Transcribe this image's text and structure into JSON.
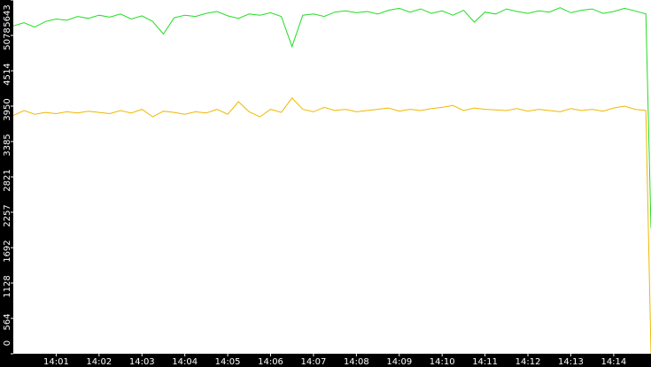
{
  "chart_data": {
    "type": "line",
    "xlim": [
      0,
      14.87
    ],
    "xticks": [
      {
        "value": 1,
        "label": "14:01"
      },
      {
        "value": 2,
        "label": "14:02"
      },
      {
        "value": 3,
        "label": "14:03"
      },
      {
        "value": 4,
        "label": "14:04"
      },
      {
        "value": 5,
        "label": "14:05"
      },
      {
        "value": 6,
        "label": "14:06"
      },
      {
        "value": 7,
        "label": "14:07"
      },
      {
        "value": 8,
        "label": "14:08"
      },
      {
        "value": 9,
        "label": "14:09"
      },
      {
        "value": 10,
        "label": "14:10"
      },
      {
        "value": 11,
        "label": "14:11"
      },
      {
        "value": 12,
        "label": "14:12"
      },
      {
        "value": 13,
        "label": "14:13"
      },
      {
        "value": 14,
        "label": "14:14"
      }
    ],
    "ylim": [
      0,
      5643
    ],
    "yticks": [
      0,
      564,
      1128,
      1692,
      2257,
      2821,
      3385,
      3950,
      4514,
      5078,
      5643
    ],
    "x": [
      0,
      0.25,
      0.5,
      0.75,
      1,
      1.25,
      1.5,
      1.75,
      2,
      2.25,
      2.5,
      2.75,
      3,
      3.25,
      3.5,
      3.75,
      4,
      4.25,
      4.5,
      4.75,
      5,
      5.25,
      5.5,
      5.75,
      6,
      6.25,
      6.5,
      6.75,
      7,
      7.25,
      7.5,
      7.75,
      8,
      8.25,
      8.5,
      8.75,
      9,
      9.25,
      9.5,
      9.75,
      10,
      10.25,
      10.5,
      10.75,
      11,
      11.25,
      11.5,
      11.75,
      12,
      12.25,
      12.5,
      12.75,
      13,
      13.25,
      13.5,
      13.75,
      14,
      14.25,
      14.5,
      14.75,
      14.87
    ],
    "series": [
      {
        "color": "#22dd22",
        "values": [
          5230,
          5280,
          5210,
          5300,
          5340,
          5320,
          5380,
          5350,
          5400,
          5370,
          5420,
          5340,
          5390,
          5300,
          5100,
          5360,
          5400,
          5380,
          5430,
          5460,
          5390,
          5350,
          5420,
          5400,
          5440,
          5380,
          4900,
          5400,
          5420,
          5380,
          5450,
          5470,
          5440,
          5460,
          5420,
          5480,
          5510,
          5450,
          5500,
          5430,
          5470,
          5400,
          5480,
          5290,
          5450,
          5420,
          5500,
          5460,
          5430,
          5470,
          5450,
          5520,
          5440,
          5480,
          5500,
          5430,
          5460,
          5510,
          5470,
          5420,
          2000
        ]
      },
      {
        "color": "#f0b800",
        "values": [
          3800,
          3880,
          3820,
          3850,
          3830,
          3860,
          3840,
          3870,
          3850,
          3830,
          3880,
          3840,
          3900,
          3780,
          3870,
          3850,
          3820,
          3860,
          3840,
          3900,
          3820,
          4020,
          3860,
          3780,
          3900,
          3850,
          4080,
          3900,
          3860,
          3930,
          3880,
          3900,
          3860,
          3880,
          3900,
          3920,
          3870,
          3900,
          3880,
          3910,
          3930,
          3960,
          3880,
          3920,
          3900,
          3890,
          3880,
          3910,
          3870,
          3900,
          3880,
          3860,
          3910,
          3880,
          3900,
          3870,
          3920,
          3950,
          3900,
          3880,
          0
        ]
      }
    ]
  }
}
